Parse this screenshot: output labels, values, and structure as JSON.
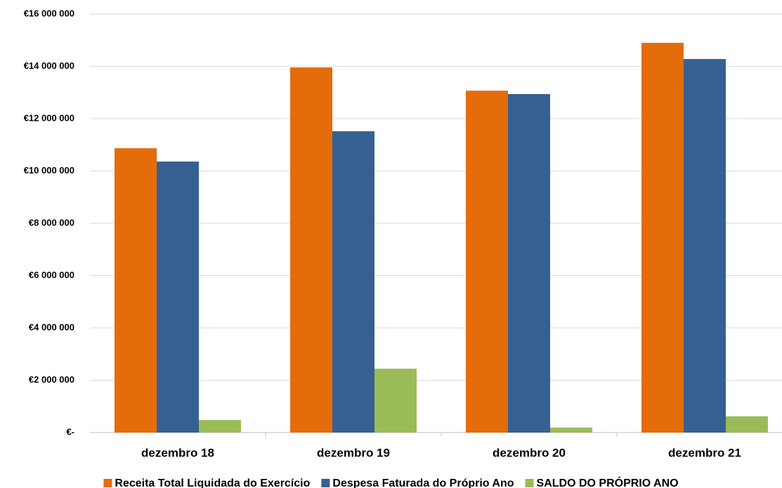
{
  "chart_data": {
    "type": "bar",
    "categories": [
      "dezembro 18",
      "dezembro 19",
      "dezembro 20",
      "dezembro 21"
    ],
    "series": [
      {
        "name": "Receita Total Liquidada do Exercício",
        "color": "#e46c0a",
        "values": [
          10870000,
          13960000,
          13070000,
          14900000
        ]
      },
      {
        "name": "Despesa Faturada do Próprio Ano",
        "color": "#376092",
        "values": [
          10360000,
          11520000,
          12940000,
          14280000
        ]
      },
      {
        "name": "SALDO DO PRÓPRIO ANO",
        "color": "#9bbb59",
        "values": [
          480000,
          2440000,
          190000,
          620000
        ]
      }
    ],
    "ylim": [
      0,
      16000000
    ],
    "yticks": [
      {
        "value": 0,
        "label": "€-"
      },
      {
        "value": 2000000,
        "label": "€2 000 000"
      },
      {
        "value": 4000000,
        "label": "€4 000 000"
      },
      {
        "value": 6000000,
        "label": "€6 000 000"
      },
      {
        "value": 8000000,
        "label": "€8 000 000"
      },
      {
        "value": 10000000,
        "label": "€10 000 000"
      },
      {
        "value": 12000000,
        "label": "€12 000 000"
      },
      {
        "value": 14000000,
        "label": "€14 000 000"
      },
      {
        "value": 16000000,
        "label": "€16 000 000"
      }
    ],
    "grid": true,
    "legend": "bottom"
  }
}
